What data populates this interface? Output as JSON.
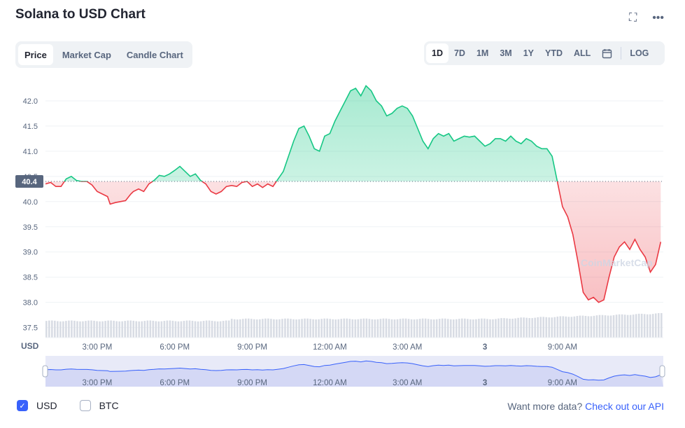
{
  "header": {
    "title": "Solana to USD Chart",
    "fullscreen_icon": "expand-icon",
    "more_icon": "more-icon"
  },
  "tabs": [
    {
      "label": "Price",
      "active": true
    },
    {
      "label": "Market Cap",
      "active": false
    },
    {
      "label": "Candle Chart",
      "active": false
    }
  ],
  "ranges": [
    {
      "label": "1D",
      "active": true
    },
    {
      "label": "7D",
      "active": false
    },
    {
      "label": "1M",
      "active": false
    },
    {
      "label": "3M",
      "active": false
    },
    {
      "label": "1Y",
      "active": false
    },
    {
      "label": "YTD",
      "active": false
    },
    {
      "label": "ALL",
      "active": false
    }
  ],
  "log_label": "LOG",
  "calendar_icon": "calendar-icon",
  "legend": {
    "usd_label": "USD",
    "btc_label": "BTC",
    "usd_checked": true,
    "btc_checked": false
  },
  "api": {
    "prefix": "Want more data?",
    "link": "Check out our API"
  },
  "colors": {
    "up": "#16c784",
    "down": "#ea3943",
    "accent": "#3861fb"
  },
  "chart_data": {
    "type": "area",
    "currency_label": "USD",
    "baseline": 40.4,
    "baseline_label": "40.4",
    "watermark": "CoinMarketCap",
    "ylim": [
      37.3,
      42.5
    ],
    "yticks": [
      42.0,
      41.5,
      41.0,
      40.5,
      40.0,
      39.5,
      39.0,
      38.5,
      38.0,
      37.5
    ],
    "xtick_labels": [
      "3:00 PM",
      "6:00 PM",
      "9:00 PM",
      "12:00 AM",
      "3:00 AM",
      "3",
      "9:00 AM"
    ],
    "xticks_at": [
      2,
      5,
      8,
      11,
      14,
      17,
      20
    ],
    "x_range": [
      0,
      23.9
    ],
    "series": [
      {
        "values": [
          [
            0,
            40.35
          ],
          [
            0.2,
            40.38
          ],
          [
            0.4,
            40.3
          ],
          [
            0.6,
            40.3
          ],
          [
            0.8,
            40.45
          ],
          [
            1.0,
            40.5
          ],
          [
            1.2,
            40.42
          ],
          [
            1.4,
            40.4
          ],
          [
            1.6,
            40.4
          ],
          [
            1.8,
            40.33
          ],
          [
            2.0,
            40.2
          ],
          [
            2.2,
            40.15
          ],
          [
            2.4,
            40.1
          ],
          [
            2.5,
            39.95
          ],
          [
            2.7,
            39.98
          ],
          [
            2.9,
            40.0
          ],
          [
            3.1,
            40.02
          ],
          [
            3.3,
            40.15
          ],
          [
            3.4,
            40.2
          ],
          [
            3.6,
            40.25
          ],
          [
            3.8,
            40.2
          ],
          [
            4.0,
            40.35
          ],
          [
            4.2,
            40.42
          ],
          [
            4.4,
            40.52
          ],
          [
            4.6,
            40.5
          ],
          [
            4.8,
            40.55
          ],
          [
            5.0,
            40.62
          ],
          [
            5.2,
            40.7
          ],
          [
            5.4,
            40.6
          ],
          [
            5.6,
            40.5
          ],
          [
            5.8,
            40.55
          ],
          [
            6.0,
            40.42
          ],
          [
            6.2,
            40.35
          ],
          [
            6.4,
            40.2
          ],
          [
            6.6,
            40.15
          ],
          [
            6.8,
            40.2
          ],
          [
            7.0,
            40.3
          ],
          [
            7.2,
            40.32
          ],
          [
            7.4,
            40.3
          ],
          [
            7.6,
            40.38
          ],
          [
            7.8,
            40.4
          ],
          [
            8.0,
            40.3
          ],
          [
            8.2,
            40.35
          ],
          [
            8.4,
            40.28
          ],
          [
            8.6,
            40.35
          ],
          [
            8.8,
            40.3
          ],
          [
            9.0,
            40.45
          ],
          [
            9.2,
            40.6
          ],
          [
            9.4,
            40.9
          ],
          [
            9.6,
            41.2
          ],
          [
            9.8,
            41.45
          ],
          [
            10.0,
            41.5
          ],
          [
            10.2,
            41.3
          ],
          [
            10.4,
            41.05
          ],
          [
            10.6,
            41.0
          ],
          [
            10.8,
            41.3
          ],
          [
            11.0,
            41.35
          ],
          [
            11.2,
            41.6
          ],
          [
            11.4,
            41.8
          ],
          [
            11.6,
            42.0
          ],
          [
            11.8,
            42.2
          ],
          [
            12.0,
            42.25
          ],
          [
            12.2,
            42.1
          ],
          [
            12.4,
            42.3
          ],
          [
            12.6,
            42.2
          ],
          [
            12.8,
            42.0
          ],
          [
            13.0,
            41.9
          ],
          [
            13.2,
            41.7
          ],
          [
            13.4,
            41.75
          ],
          [
            13.6,
            41.85
          ],
          [
            13.8,
            41.9
          ],
          [
            14.0,
            41.85
          ],
          [
            14.2,
            41.7
          ],
          [
            14.4,
            41.45
          ],
          [
            14.6,
            41.2
          ],
          [
            14.8,
            41.05
          ],
          [
            15.0,
            41.25
          ],
          [
            15.2,
            41.35
          ],
          [
            15.4,
            41.3
          ],
          [
            15.6,
            41.35
          ],
          [
            15.8,
            41.2
          ],
          [
            16.0,
            41.25
          ],
          [
            16.2,
            41.3
          ],
          [
            16.4,
            41.28
          ],
          [
            16.6,
            41.3
          ],
          [
            16.8,
            41.2
          ],
          [
            17.0,
            41.1
          ],
          [
            17.2,
            41.15
          ],
          [
            17.4,
            41.25
          ],
          [
            17.6,
            41.25
          ],
          [
            17.8,
            41.2
          ],
          [
            18.0,
            41.3
          ],
          [
            18.2,
            41.2
          ],
          [
            18.4,
            41.15
          ],
          [
            18.6,
            41.25
          ],
          [
            18.8,
            41.2
          ],
          [
            19.0,
            41.1
          ],
          [
            19.2,
            41.05
          ],
          [
            19.4,
            41.05
          ],
          [
            19.6,
            40.9
          ],
          [
            19.8,
            40.4
          ],
          [
            20.0,
            39.9
          ],
          [
            20.2,
            39.7
          ],
          [
            20.4,
            39.35
          ],
          [
            20.6,
            38.8
          ],
          [
            20.8,
            38.2
          ],
          [
            21.0,
            38.05
          ],
          [
            21.2,
            38.1
          ],
          [
            21.4,
            38.0
          ],
          [
            21.6,
            38.05
          ],
          [
            21.8,
            38.5
          ],
          [
            22.0,
            38.9
          ],
          [
            22.2,
            39.1
          ],
          [
            22.4,
            39.2
          ],
          [
            22.6,
            39.05
          ],
          [
            22.8,
            39.25
          ],
          [
            23.0,
            39.05
          ],
          [
            23.2,
            38.9
          ],
          [
            23.4,
            38.6
          ],
          [
            23.6,
            38.75
          ],
          [
            23.8,
            39.2
          ]
        ]
      }
    ]
  }
}
